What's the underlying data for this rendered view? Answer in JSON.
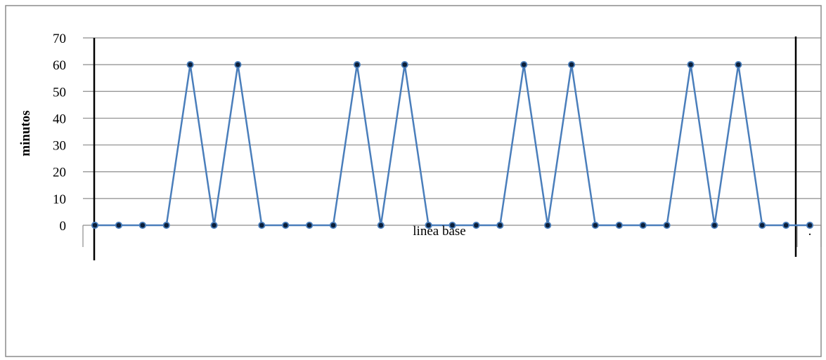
{
  "chart_data": {
    "type": "line",
    "ylabel": "minutos",
    "ylim": [
      0,
      70
    ],
    "yticks": [
      "0",
      "10",
      "20",
      "30",
      "40",
      "50",
      "60",
      "70"
    ],
    "grid": true,
    "phase_labels": [
      "linea base",
      "."
    ],
    "series": [
      {
        "values": [
          0,
          0,
          0,
          0,
          60,
          0,
          60,
          0,
          0,
          0,
          0,
          60,
          0,
          60,
          0,
          0,
          0,
          0,
          60,
          0,
          60,
          0,
          0,
          0,
          0,
          60,
          0,
          60,
          0,
          0,
          0
        ]
      }
    ],
    "colors": {
      "line": "#4a7ebb",
      "marker_fill": "#0b1f3a",
      "grid": "#8c8c8c",
      "phase_line": "#000000",
      "border": "#8c8c8c"
    }
  }
}
